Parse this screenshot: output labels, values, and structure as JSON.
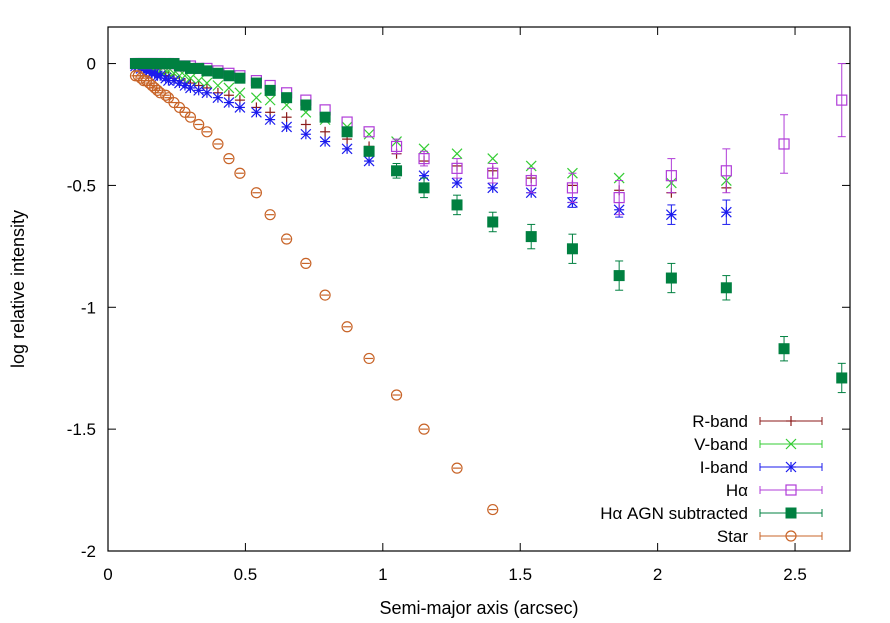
{
  "chart_data": {
    "type": "scatter",
    "xlabel": "Semi-major axis (arcsec)",
    "ylabel": "log relative intensity",
    "xlim": [
      0,
      2.7
    ],
    "ylim": [
      -2,
      0.15
    ],
    "xticks": [
      0,
      0.5,
      1,
      1.5,
      2,
      2.5
    ],
    "xtick_labels": [
      "0",
      "0.5",
      "1",
      "1.5",
      "2",
      "2.5"
    ],
    "yticks": [
      0,
      -0.5,
      -1,
      -1.5,
      -2
    ],
    "ytick_labels": [
      "0",
      "-0.5",
      "-1",
      "-1.5",
      "-2"
    ],
    "grid": false,
    "legend_position": "bottom-right",
    "series": [
      {
        "name": "R-band",
        "marker": "plus",
        "color": "#8b1a1a",
        "errorbars": true,
        "points": [
          [
            0.1,
            0
          ],
          [
            0.11,
            -0.01
          ],
          [
            0.12,
            -0.01
          ],
          [
            0.13,
            -0.02
          ],
          [
            0.14,
            -0.02
          ],
          [
            0.15,
            -0.03
          ],
          [
            0.16,
            -0.03
          ],
          [
            0.17,
            -0.04
          ],
          [
            0.18,
            -0.04
          ],
          [
            0.19,
            -0.04
          ],
          [
            0.21,
            -0.05
          ],
          [
            0.22,
            -0.05
          ],
          [
            0.24,
            -0.06
          ],
          [
            0.26,
            -0.07
          ],
          [
            0.28,
            -0.08
          ],
          [
            0.3,
            -0.08
          ],
          [
            0.33,
            -0.09
          ],
          [
            0.36,
            -0.1
          ],
          [
            0.4,
            -0.12
          ],
          [
            0.44,
            -0.13
          ],
          [
            0.48,
            -0.15
          ],
          [
            0.54,
            -0.18
          ],
          [
            0.59,
            -0.2
          ],
          [
            0.65,
            -0.22
          ],
          [
            0.72,
            -0.25
          ],
          [
            0.79,
            -0.28
          ],
          [
            0.87,
            -0.31
          ],
          [
            0.95,
            -0.34
          ],
          [
            1.05,
            -0.37
          ],
          [
            1.15,
            -0.4
          ],
          [
            1.27,
            -0.42
          ],
          [
            1.4,
            -0.44
          ],
          [
            1.54,
            -0.47
          ],
          [
            1.69,
            -0.5
          ],
          [
            1.86,
            -0.52
          ],
          [
            2.05,
            -0.53
          ],
          [
            2.25,
            -0.51
          ]
        ]
      },
      {
        "name": "V-band",
        "marker": "cross",
        "color": "#33cc33",
        "errorbars": true,
        "points": [
          [
            0.1,
            0
          ],
          [
            0.11,
            0
          ],
          [
            0.12,
            0
          ],
          [
            0.13,
            -0.01
          ],
          [
            0.14,
            -0.01
          ],
          [
            0.15,
            -0.01
          ],
          [
            0.16,
            -0.02
          ],
          [
            0.17,
            -0.02
          ],
          [
            0.18,
            -0.02
          ],
          [
            0.19,
            -0.03
          ],
          [
            0.21,
            -0.03
          ],
          [
            0.22,
            -0.03
          ],
          [
            0.24,
            -0.04
          ],
          [
            0.26,
            -0.05
          ],
          [
            0.28,
            -0.05
          ],
          [
            0.3,
            -0.06
          ],
          [
            0.33,
            -0.07
          ],
          [
            0.36,
            -0.08
          ],
          [
            0.4,
            -0.09
          ],
          [
            0.44,
            -0.1
          ],
          [
            0.48,
            -0.12
          ],
          [
            0.54,
            -0.14
          ],
          [
            0.59,
            -0.15
          ],
          [
            0.65,
            -0.17
          ],
          [
            0.72,
            -0.2
          ],
          [
            0.79,
            -0.23
          ],
          [
            0.87,
            -0.26
          ],
          [
            0.95,
            -0.29
          ],
          [
            1.05,
            -0.32
          ],
          [
            1.15,
            -0.35
          ],
          [
            1.27,
            -0.37
          ],
          [
            1.4,
            -0.39
          ],
          [
            1.54,
            -0.42
          ],
          [
            1.69,
            -0.45
          ],
          [
            1.86,
            -0.47
          ],
          [
            2.05,
            -0.49
          ],
          [
            2.25,
            -0.48
          ]
        ]
      },
      {
        "name": "I-band",
        "marker": "star",
        "color": "#1a1aee",
        "errorbars": true,
        "points": [
          [
            0.1,
            -0.01
          ],
          [
            0.11,
            -0.01
          ],
          [
            0.12,
            -0.02
          ],
          [
            0.13,
            -0.02
          ],
          [
            0.14,
            -0.03
          ],
          [
            0.15,
            -0.03
          ],
          [
            0.16,
            -0.04
          ],
          [
            0.17,
            -0.04
          ],
          [
            0.18,
            -0.05
          ],
          [
            0.19,
            -0.05
          ],
          [
            0.21,
            -0.06
          ],
          [
            0.22,
            -0.07
          ],
          [
            0.24,
            -0.07
          ],
          [
            0.26,
            -0.08
          ],
          [
            0.28,
            -0.09
          ],
          [
            0.3,
            -0.1
          ],
          [
            0.33,
            -0.11
          ],
          [
            0.36,
            -0.12
          ],
          [
            0.4,
            -0.14
          ],
          [
            0.44,
            -0.16
          ],
          [
            0.48,
            -0.18
          ],
          [
            0.54,
            -0.2
          ],
          [
            0.59,
            -0.23
          ],
          [
            0.65,
            -0.26
          ],
          [
            0.72,
            -0.29
          ],
          [
            0.79,
            -0.32
          ],
          [
            0.87,
            -0.35
          ],
          [
            0.95,
            -0.4
          ],
          [
            1.05,
            -0.44
          ],
          [
            1.15,
            -0.46
          ],
          [
            1.27,
            -0.49
          ],
          [
            1.4,
            -0.51
          ],
          [
            1.54,
            -0.53
          ],
          [
            1.69,
            -0.57
          ],
          [
            1.86,
            -0.6
          ],
          [
            2.05,
            -0.62
          ],
          [
            2.25,
            -0.61
          ]
        ],
        "errors": [
          0,
          0,
          0,
          0,
          0,
          0,
          0,
          0,
          0,
          0,
          0,
          0,
          0,
          0,
          0,
          0,
          0,
          0,
          0,
          0,
          0,
          0,
          0,
          0,
          0,
          0,
          0,
          0,
          0,
          0,
          0,
          0,
          0,
          0.02,
          0.03,
          0.04,
          0.05
        ]
      },
      {
        "name": "Hα",
        "marker": "open-square",
        "color": "#b03cd8",
        "errorbars": true,
        "points": [
          [
            0.1,
            0
          ],
          [
            0.11,
            0
          ],
          [
            0.12,
            0
          ],
          [
            0.13,
            0
          ],
          [
            0.14,
            0
          ],
          [
            0.15,
            0
          ],
          [
            0.16,
            0
          ],
          [
            0.17,
            0
          ],
          [
            0.18,
            0
          ],
          [
            0.19,
            0
          ],
          [
            0.21,
            0
          ],
          [
            0.22,
            0
          ],
          [
            0.24,
            0
          ],
          [
            0.26,
            -0.01
          ],
          [
            0.28,
            -0.01
          ],
          [
            0.3,
            -0.01
          ],
          [
            0.33,
            -0.02
          ],
          [
            0.36,
            -0.02
          ],
          [
            0.4,
            -0.03
          ],
          [
            0.44,
            -0.04
          ],
          [
            0.48,
            -0.05
          ],
          [
            0.54,
            -0.07
          ],
          [
            0.59,
            -0.09
          ],
          [
            0.65,
            -0.12
          ],
          [
            0.72,
            -0.15
          ],
          [
            0.79,
            -0.19
          ],
          [
            0.87,
            -0.24
          ],
          [
            0.95,
            -0.28
          ],
          [
            1.05,
            -0.34
          ],
          [
            1.15,
            -0.39
          ],
          [
            1.27,
            -0.43
          ],
          [
            1.4,
            -0.45
          ],
          [
            1.54,
            -0.48
          ],
          [
            1.69,
            -0.51
          ],
          [
            1.86,
            -0.55
          ],
          [
            2.05,
            -0.46
          ],
          [
            2.25,
            -0.44
          ],
          [
            2.46,
            -0.33
          ],
          [
            2.67,
            -0.15
          ]
        ],
        "errors": [
          0,
          0,
          0,
          0,
          0,
          0,
          0,
          0,
          0,
          0,
          0,
          0,
          0,
          0,
          0,
          0,
          0,
          0,
          0,
          0,
          0,
          0,
          0,
          0,
          0,
          0,
          0,
          0,
          0.03,
          0.03,
          0.04,
          0.04,
          0.05,
          0.06,
          0.07,
          0.07,
          0.09,
          0.12,
          0.15
        ]
      },
      {
        "name": "Hα AGN subtracted",
        "marker": "filled-square",
        "color": "#008040",
        "errorbars": true,
        "points": [
          [
            0.1,
            0
          ],
          [
            0.11,
            0
          ],
          [
            0.12,
            0
          ],
          [
            0.13,
            0
          ],
          [
            0.14,
            0
          ],
          [
            0.15,
            0
          ],
          [
            0.16,
            0
          ],
          [
            0.17,
            0
          ],
          [
            0.18,
            0
          ],
          [
            0.19,
            0
          ],
          [
            0.21,
            0
          ],
          [
            0.22,
            0
          ],
          [
            0.24,
            0
          ],
          [
            0.26,
            -0.01
          ],
          [
            0.28,
            -0.01
          ],
          [
            0.3,
            -0.02
          ],
          [
            0.33,
            -0.02
          ],
          [
            0.36,
            -0.03
          ],
          [
            0.4,
            -0.04
          ],
          [
            0.44,
            -0.05
          ],
          [
            0.48,
            -0.06
          ],
          [
            0.54,
            -0.08
          ],
          [
            0.59,
            -0.11
          ],
          [
            0.65,
            -0.14
          ],
          [
            0.72,
            -0.17
          ],
          [
            0.79,
            -0.22
          ],
          [
            0.87,
            -0.28
          ],
          [
            0.95,
            -0.36
          ],
          [
            1.05,
            -0.44
          ],
          [
            1.15,
            -0.51
          ],
          [
            1.27,
            -0.58
          ],
          [
            1.4,
            -0.65
          ],
          [
            1.54,
            -0.71
          ],
          [
            1.69,
            -0.76
          ],
          [
            1.86,
            -0.87
          ],
          [
            2.05,
            -0.88
          ],
          [
            2.25,
            -0.92
          ],
          [
            2.46,
            -1.17
          ],
          [
            2.67,
            -1.29
          ]
        ],
        "errors": [
          0,
          0,
          0,
          0,
          0,
          0,
          0,
          0,
          0,
          0,
          0,
          0,
          0,
          0,
          0,
          0,
          0,
          0,
          0,
          0,
          0,
          0,
          0,
          0,
          0,
          0,
          0,
          0,
          0.03,
          0.04,
          0.04,
          0.04,
          0.05,
          0.06,
          0.06,
          0.06,
          0.05,
          0.05,
          0.06
        ]
      },
      {
        "name": "Star",
        "marker": "open-circle",
        "color": "#c86428",
        "errorbars": true,
        "points": [
          [
            0.1,
            -0.05
          ],
          [
            0.11,
            -0.05
          ],
          [
            0.12,
            -0.06
          ],
          [
            0.13,
            -0.07
          ],
          [
            0.14,
            -0.07
          ],
          [
            0.15,
            -0.08
          ],
          [
            0.16,
            -0.09
          ],
          [
            0.17,
            -0.1
          ],
          [
            0.18,
            -0.11
          ],
          [
            0.19,
            -0.12
          ],
          [
            0.21,
            -0.13
          ],
          [
            0.22,
            -0.14
          ],
          [
            0.24,
            -0.16
          ],
          [
            0.26,
            -0.18
          ],
          [
            0.28,
            -0.2
          ],
          [
            0.3,
            -0.22
          ],
          [
            0.33,
            -0.25
          ],
          [
            0.36,
            -0.28
          ],
          [
            0.4,
            -0.33
          ],
          [
            0.44,
            -0.39
          ],
          [
            0.48,
            -0.45
          ],
          [
            0.54,
            -0.53
          ],
          [
            0.59,
            -0.62
          ],
          [
            0.65,
            -0.72
          ],
          [
            0.72,
            -0.82
          ],
          [
            0.79,
            -0.95
          ],
          [
            0.87,
            -1.08
          ],
          [
            0.95,
            -1.21
          ],
          [
            1.05,
            -1.36
          ],
          [
            1.15,
            -1.5
          ],
          [
            1.27,
            -1.66
          ],
          [
            1.4,
            -1.83
          ]
        ]
      }
    ]
  }
}
